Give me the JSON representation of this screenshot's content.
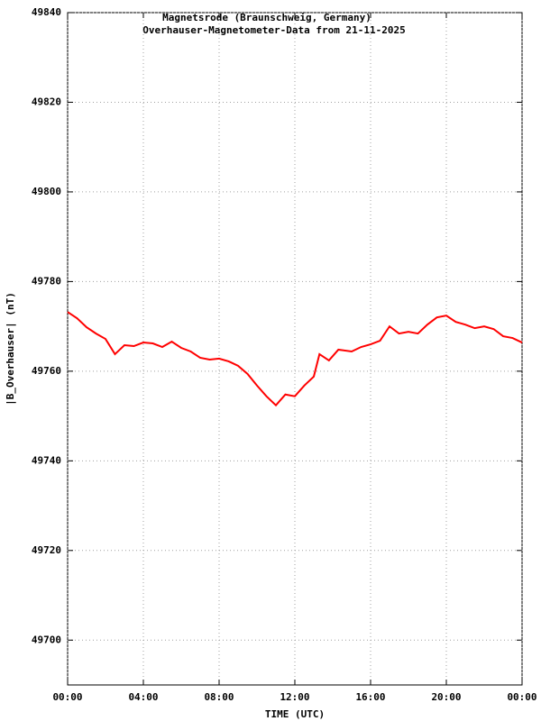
{
  "chart_data": {
    "type": "line",
    "title": "Magnetsrode (Braunschweig, Germany)",
    "subtitle": "Overhauser-Magnetometer-Data from 21-11-2025",
    "x_label": "TIME (UTC)",
    "y_label": "|B_Overhauser| (nT)",
    "xlim": [
      0,
      24
    ],
    "xticks": [
      {
        "value": 0,
        "label": "00:00"
      },
      {
        "value": 4,
        "label": "04:00"
      },
      {
        "value": 8,
        "label": "08:00"
      },
      {
        "value": 12,
        "label": "12:00"
      },
      {
        "value": 16,
        "label": "16:00"
      },
      {
        "value": 20,
        "label": "20:00"
      },
      {
        "value": 24,
        "label": "00:00"
      }
    ],
    "ylim": [
      49690,
      49840
    ],
    "yticks": [
      49700,
      49720,
      49740,
      49760,
      49780,
      49800,
      49820,
      49840
    ],
    "grid": true,
    "series": [
      {
        "name": "|B_Overhauser|",
        "color": "#ff0000",
        "x": [
          0,
          0.5,
          1,
          1.5,
          2,
          2.5,
          3,
          3.5,
          4,
          4.5,
          5,
          5.5,
          6,
          6.5,
          7,
          7.5,
          8,
          8.5,
          9,
          9.5,
          10,
          10.5,
          11,
          11.5,
          12,
          12.5,
          13,
          13.3,
          13.8,
          14.3,
          15,
          15.5,
          16,
          16.5,
          17,
          17.5,
          18,
          18.5,
          19,
          19.5,
          20,
          20.5,
          21,
          21.5,
          22,
          22.5,
          23,
          23.5,
          24
        ],
        "values": [
          49773.2,
          49771.8,
          49769.8,
          49768.4,
          49767.2,
          49763.8,
          49765.8,
          49765.6,
          49766.4,
          49766.2,
          49765.4,
          49766.6,
          49765.2,
          49764.4,
          49763,
          49762.6,
          49762.8,
          49762.2,
          49761.2,
          49759.4,
          49756.8,
          49754.4,
          49752.4,
          49754.8,
          49754.4,
          49756.8,
          49758.8,
          49763.8,
          49762.4,
          49764.8,
          49764.4,
          49765.4,
          49766,
          49766.8,
          49770,
          49768.4,
          49768.8,
          49768.4,
          49770.4,
          49772,
          49772.4,
          49771,
          49770.4,
          49769.6,
          49770,
          49769.4,
          49767.8,
          49767.4,
          49766.4
        ]
      }
    ]
  }
}
